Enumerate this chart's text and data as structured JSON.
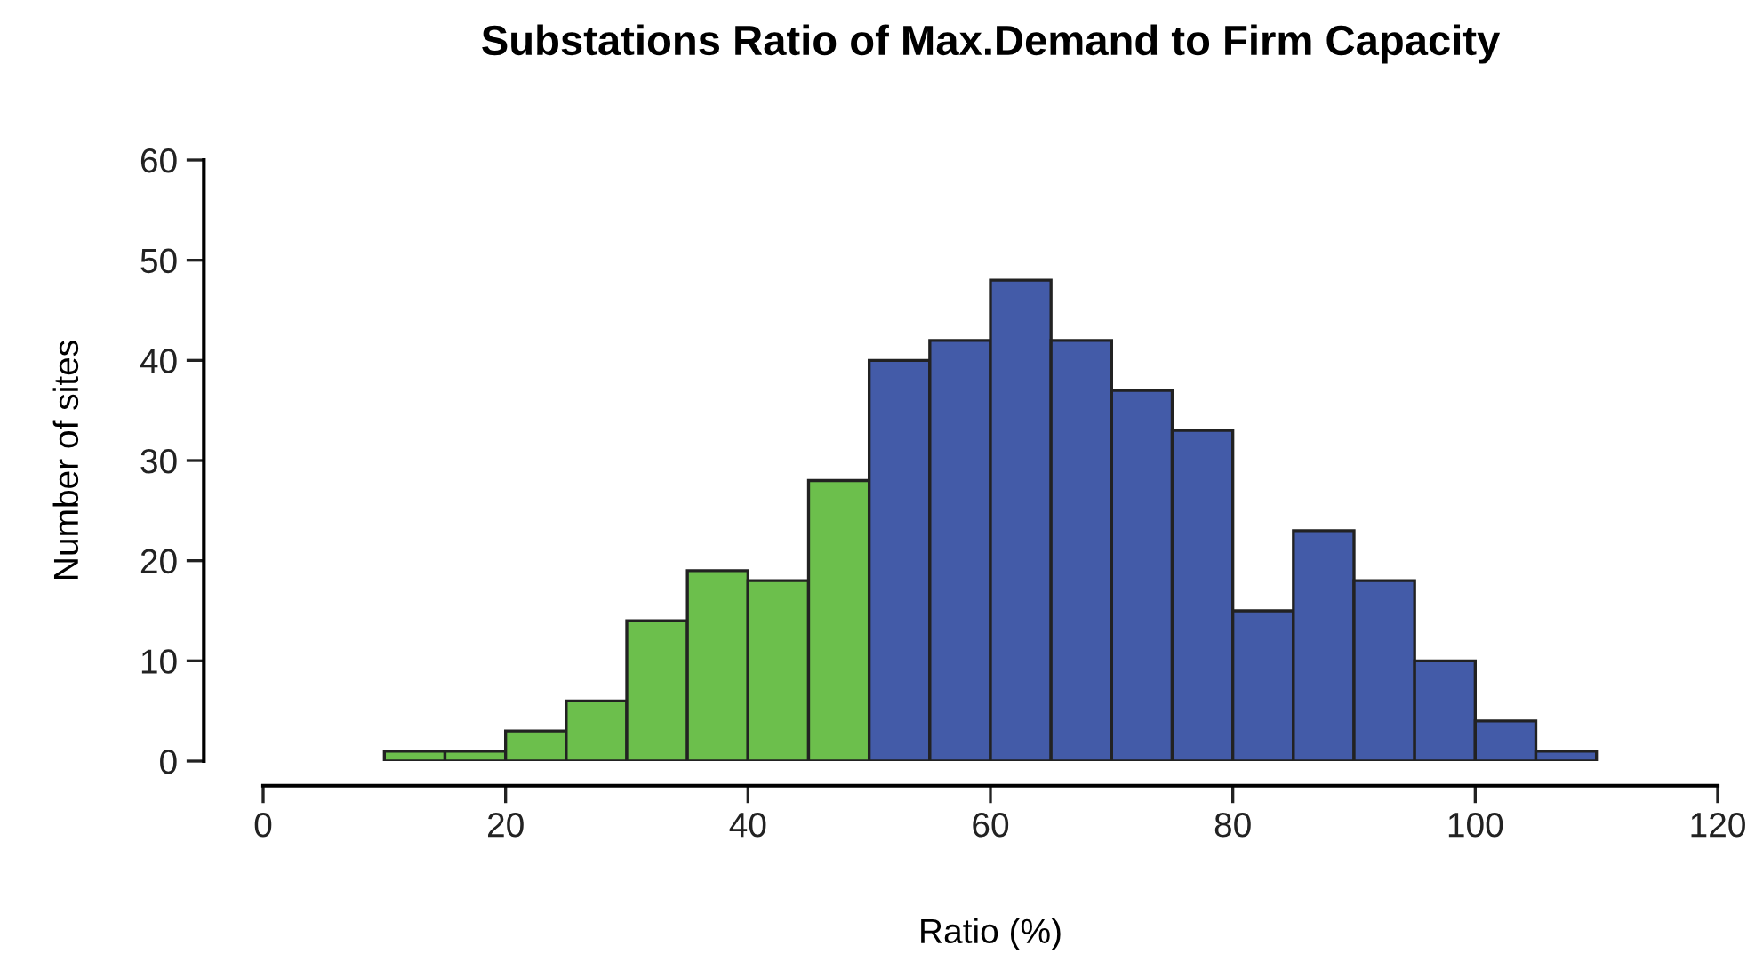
{
  "chart_data": {
    "type": "histogram",
    "title": "Substations Ratio of Max.Demand to Firm Capacity",
    "xlabel": "Ratio (%)",
    "ylabel": "Number of sites",
    "bins": [
      10,
      15,
      20,
      25,
      30,
      35,
      40,
      45,
      50,
      55,
      60,
      65,
      70,
      75,
      80,
      85,
      90,
      95,
      100,
      105,
      110
    ],
    "values": [
      1,
      1,
      3,
      6,
      14,
      19,
      18,
      28,
      40,
      42,
      48,
      42,
      37,
      33,
      15,
      23,
      18,
      10,
      4,
      1
    ],
    "colors": [
      "#6cbf4c",
      "#6cbf4c",
      "#6cbf4c",
      "#6cbf4c",
      "#6cbf4c",
      "#6cbf4c",
      "#6cbf4c",
      "#6cbf4c",
      "#435ba8",
      "#435ba8",
      "#435ba8",
      "#435ba8",
      "#435ba8",
      "#435ba8",
      "#435ba8",
      "#435ba8",
      "#435ba8",
      "#435ba8",
      "#435ba8",
      "#435ba8"
    ],
    "xlim": [
      0,
      120
    ],
    "xticks": [
      0,
      20,
      40,
      60,
      80,
      100,
      120
    ],
    "ylim": [
      0,
      60
    ],
    "yticks": [
      0,
      10,
      20,
      30,
      40,
      50,
      60
    ],
    "grid": false
  }
}
